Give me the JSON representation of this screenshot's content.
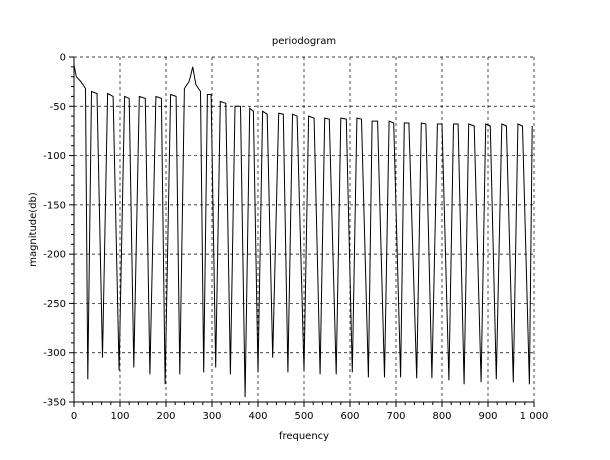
{
  "chart_data": {
    "type": "line",
    "title": "periodogram",
    "xlabel": "frequency",
    "ylabel": "magnitude(db)",
    "xlim": [
      0,
      1000
    ],
    "ylim": [
      -350,
      0
    ],
    "x_ticks": [
      0,
      100,
      200,
      300,
      400,
      500,
      600,
      700,
      800,
      900,
      1000
    ],
    "x_tick_labels": [
      "0",
      "100",
      "200",
      "300",
      "400",
      "500",
      "600",
      "700",
      "800",
      "900",
      "1 000"
    ],
    "y_ticks": [
      -350,
      -300,
      -250,
      -200,
      -150,
      -100,
      -50,
      0
    ],
    "y_tick_labels": [
      "-350",
      "-300",
      "-250",
      "-200",
      "-150",
      "-100",
      "-50",
      "0"
    ],
    "grid": true,
    "grid_style": "dashed",
    "colors": {
      "line": "#000000",
      "grid": "#000000",
      "axes": "#000000"
    },
    "series": [
      {
        "x": [
          0,
          5,
          15,
          25,
          30,
          38,
          50,
          62,
          73,
          85,
          98,
          110,
          120,
          130,
          142,
          155,
          165,
          178,
          190,
          198,
          210,
          222,
          230,
          240,
          250,
          253,
          258,
          265,
          275,
          282,
          290,
          298,
          308,
          318,
          330,
          340,
          350,
          362,
          372,
          382,
          390,
          400,
          410,
          420,
          432,
          445,
          455,
          465,
          475,
          485,
          500,
          510,
          522,
          535,
          545,
          555,
          570,
          580,
          592,
          605,
          615,
          625,
          640,
          648,
          660,
          675,
          685,
          695,
          710,
          718,
          728,
          745,
          755,
          765,
          778,
          790,
          800,
          815,
          825,
          835,
          848,
          858,
          870,
          885,
          895,
          905,
          918,
          930,
          940,
          955,
          965,
          975,
          990,
          996
        ],
        "y": [
          -8,
          -20,
          -25,
          -32,
          -327,
          -35,
          -37,
          -305,
          -37,
          -40,
          -318,
          -40,
          -42,
          -315,
          -40,
          -42,
          -322,
          -40,
          -42,
          -332,
          -38,
          -40,
          -322,
          -32,
          -25,
          -20,
          -10,
          -28,
          -35,
          -320,
          -38,
          -38,
          -315,
          -45,
          -47,
          -322,
          -50,
          -50,
          -345,
          -52,
          -55,
          -320,
          -55,
          -58,
          -305,
          -57,
          -58,
          -320,
          -58,
          -60,
          -318,
          -60,
          -62,
          -322,
          -62,
          -63,
          -322,
          -62,
          -63,
          -320,
          -62,
          -63,
          -325,
          -65,
          -65,
          -325,
          -65,
          -67,
          -325,
          -67,
          -67,
          -326,
          -67,
          -68,
          -326,
          -68,
          -68,
          -328,
          -68,
          -68,
          -332,
          -68,
          -70,
          -330,
          -68,
          -70,
          -327,
          -68,
          -70,
          -330,
          -68,
          -70,
          -332,
          -70
        ]
      }
    ]
  }
}
